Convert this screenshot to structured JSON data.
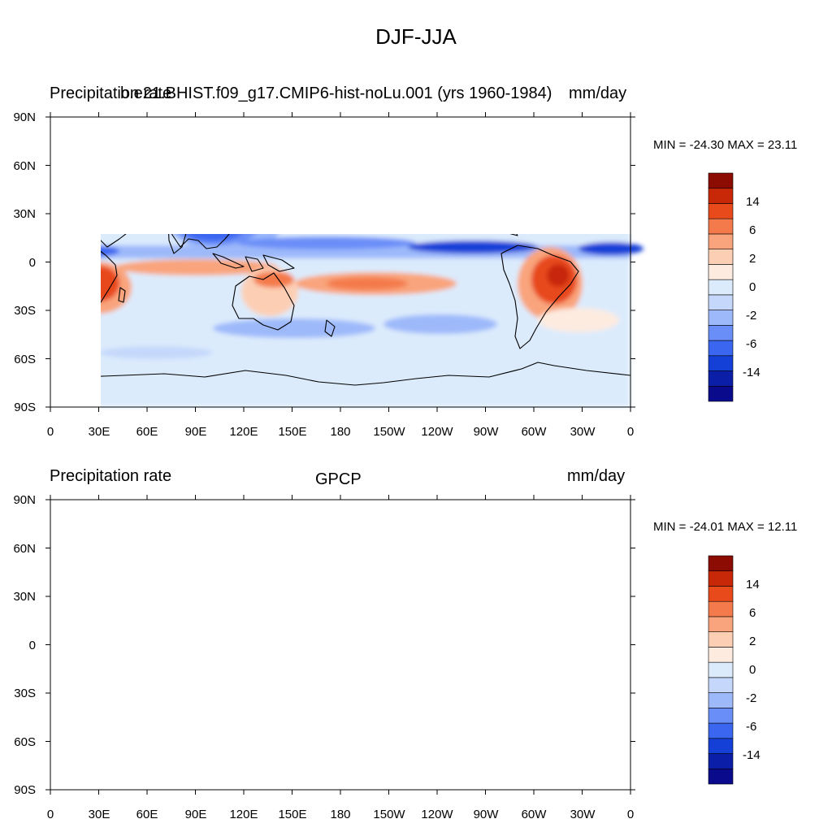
{
  "main_title": "DJF-JJA",
  "colors": {
    "levels": [
      "#0a0a8c",
      "#0a1ea8",
      "#1440d8",
      "#3a66f0",
      "#6a8ef8",
      "#9db9fa",
      "#c5d8fb",
      "#dcebfc",
      "#fdebe0",
      "#fccfb4",
      "#f9a47c",
      "#f47a4c",
      "#e84a1c",
      "#c82808",
      "#8c0c04"
    ]
  },
  "panels": [
    {
      "name": "model",
      "left_title": "Precipitation rate",
      "center_title": "b.e21.BHIST.f09_g17.CMIP6-hist-noLu.001 (yrs 1960-1984)",
      "right_title": "mm/day",
      "min_max": "MIN = -24.30 MAX =  23.11",
      "y_labels": [
        "90N",
        "60N",
        "30N",
        "0",
        "30S",
        "60S",
        "90S"
      ],
      "x_labels": [
        "0",
        "30E",
        "60E",
        "90E",
        "120E",
        "150E",
        "180",
        "150W",
        "120W",
        "90W",
        "60W",
        "30W",
        "0"
      ],
      "colorbar_labels": [
        "14",
        "6",
        "2",
        "0",
        "-2",
        "-6",
        "-14"
      ]
    },
    {
      "name": "gpcp",
      "left_title": "Precipitation rate",
      "center_title": "GPCP",
      "right_title": "mm/day",
      "min_max": "MIN = -24.01 MAX =  12.11",
      "y_labels": [
        "90N",
        "60N",
        "30N",
        "0",
        "30S",
        "60S",
        "90S"
      ],
      "x_labels": [
        "0",
        "30E",
        "60E",
        "90E",
        "120E",
        "150E",
        "180",
        "150W",
        "120W",
        "90W",
        "60W",
        "30W",
        "0"
      ],
      "colorbar_labels": [
        "14",
        "6",
        "2",
        "0",
        "-2",
        "-6",
        "-14"
      ]
    }
  ]
}
